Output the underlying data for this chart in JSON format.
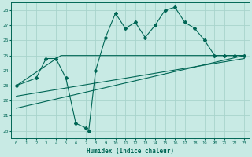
{
  "title": "",
  "xlabel": "Humidex (Indice chaleur)",
  "ylabel": "",
  "xlim": [
    -0.5,
    23.5
  ],
  "ylim": [
    19.5,
    28.5
  ],
  "yticks": [
    20,
    21,
    22,
    23,
    24,
    25,
    26,
    27,
    28
  ],
  "xticks": [
    0,
    1,
    2,
    3,
    4,
    5,
    6,
    7,
    8,
    9,
    10,
    11,
    12,
    13,
    14,
    15,
    16,
    17,
    18,
    19,
    20,
    21,
    22,
    23
  ],
  "bg_color": "#c8eae4",
  "grid_color": "#a8d4cc",
  "line_color": "#006655",
  "main_x": [
    0,
    2,
    3,
    4,
    5,
    6,
    7,
    7.3,
    8,
    9,
    10,
    11,
    12,
    13,
    14,
    15,
    16,
    17,
    18,
    19,
    20,
    21,
    22,
    23
  ],
  "main_y": [
    23,
    23.5,
    24.8,
    24.8,
    23.5,
    20.5,
    20.2,
    20,
    24,
    26.2,
    27.8,
    26.8,
    27.2,
    26.2,
    27,
    28,
    28.2,
    27.2,
    26.8,
    26,
    25,
    25,
    25,
    25
  ],
  "line1_x": [
    0,
    4.5,
    23
  ],
  "line1_y": [
    23,
    25,
    25
  ],
  "line2_x": [
    0,
    23
  ],
  "line2_y": [
    21.5,
    25.0
  ],
  "line3_x": [
    0,
    23
  ],
  "line3_y": [
    22.3,
    24.8
  ]
}
